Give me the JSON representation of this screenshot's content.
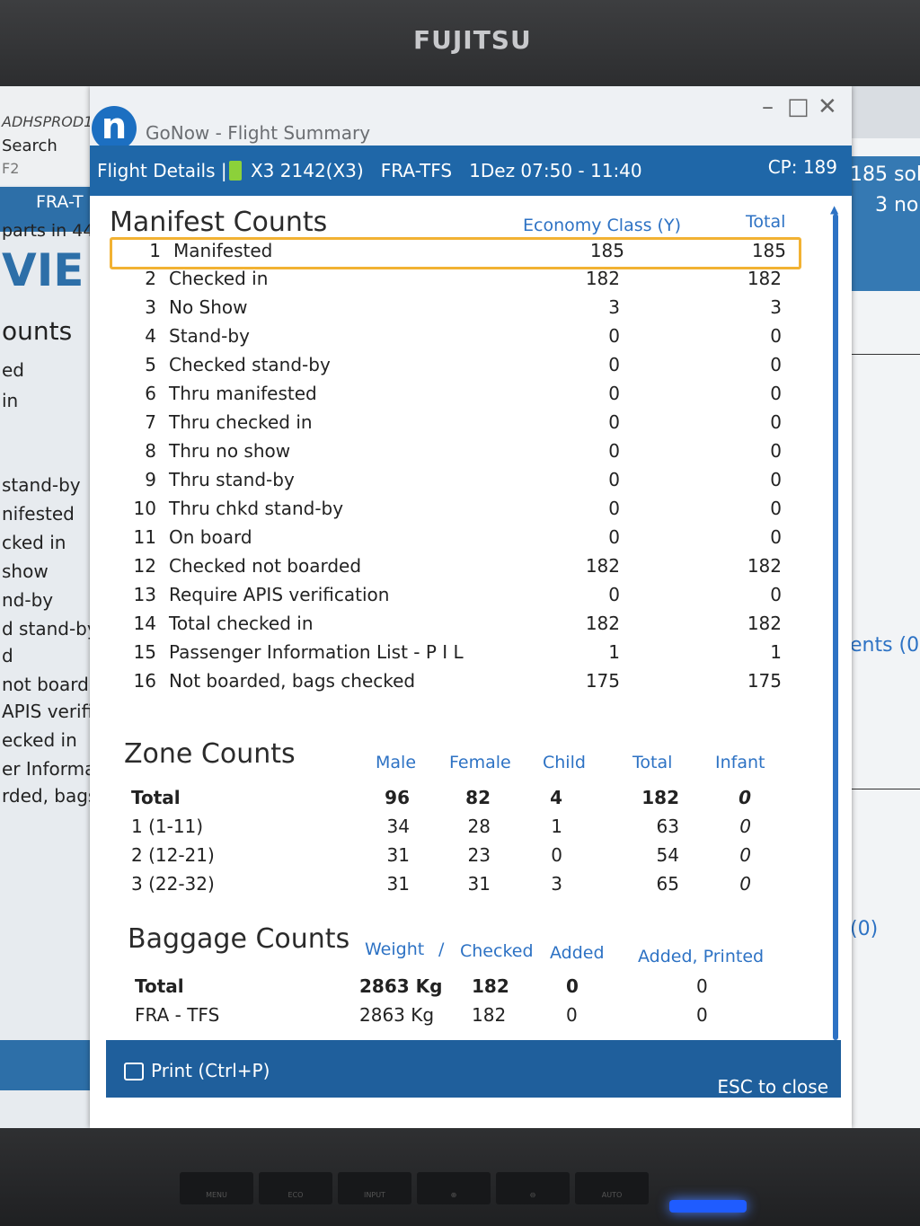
{
  "monitor": {
    "brand": "FUJITSU",
    "buttons": [
      "MENU",
      "ECO",
      "INPUT",
      "⊕",
      "⊖",
      "AUTO"
    ]
  },
  "background_app": {
    "left_texts": [
      "ADHSPROD1",
      "Search",
      "F2",
      "FRA-T",
      "parts in 44",
      "VIE",
      "ounts",
      "ed",
      "in",
      "stand-by",
      "nifested",
      "cked in",
      "show",
      "nd-by",
      "d stand-by",
      "d",
      "not boarde",
      "APIS verific",
      "ecked in",
      "er Informat",
      "rded, bags"
    ],
    "right_texts": [
      "185 sol",
      "3 no",
      "ents (0",
      "(0)"
    ]
  },
  "window": {
    "title": "GoNow - Flight Summary",
    "controls": [
      "–",
      "□",
      "✕"
    ],
    "logo": "n"
  },
  "header": {
    "label": "Flight Details |",
    "flight": "X3 2142(X3)",
    "route": "FRA-TFS",
    "date_time": "1Dez 07:50 - 11:40",
    "cp": "CP: 189"
  },
  "manifest": {
    "title": "Manifest Counts",
    "col_economy": "Economy Class (Y)",
    "col_total": "Total",
    "rows": [
      {
        "num": "1",
        "label": "Manifested",
        "economy": "185",
        "total": "185"
      },
      {
        "num": "2",
        "label": "Checked in",
        "economy": "182",
        "total": "182"
      },
      {
        "num": "3",
        "label": "No Show",
        "economy": "3",
        "total": "3"
      },
      {
        "num": "4",
        "label": "Stand-by",
        "economy": "0",
        "total": "0"
      },
      {
        "num": "5",
        "label": "Checked stand-by",
        "economy": "0",
        "total": "0"
      },
      {
        "num": "6",
        "label": "Thru manifested",
        "economy": "0",
        "total": "0"
      },
      {
        "num": "7",
        "label": "Thru checked in",
        "economy": "0",
        "total": "0"
      },
      {
        "num": "8",
        "label": "Thru no show",
        "economy": "0",
        "total": "0"
      },
      {
        "num": "9",
        "label": "Thru stand-by",
        "economy": "0",
        "total": "0"
      },
      {
        "num": "10",
        "label": "Thru chkd stand-by",
        "economy": "0",
        "total": "0"
      },
      {
        "num": "11",
        "label": "On board",
        "economy": "0",
        "total": "0"
      },
      {
        "num": "12",
        "label": "Checked not boarded",
        "economy": "182",
        "total": "182"
      },
      {
        "num": "13",
        "label": "Require APIS verification",
        "economy": "0",
        "total": "0"
      },
      {
        "num": "14",
        "label": "Total checked in",
        "economy": "182",
        "total": "182"
      },
      {
        "num": "15",
        "label": "Passenger Information List - P I L",
        "economy": "1",
        "total": "1"
      },
      {
        "num": "16",
        "label": "Not boarded, bags checked",
        "economy": "175",
        "total": "175"
      }
    ]
  },
  "zones": {
    "title": "Zone Counts",
    "headers": [
      "Male",
      "Female",
      "Child",
      "Total",
      "Infant"
    ],
    "rows": [
      {
        "label": "Total",
        "male": "96",
        "female": "82",
        "child": "4",
        "total": "182",
        "infant": "0"
      },
      {
        "label": "1 (1-11)",
        "male": "34",
        "female": "28",
        "child": "1",
        "total": "63",
        "infant": "0"
      },
      {
        "label": "2 (12-21)",
        "male": "31",
        "female": "23",
        "child": "0",
        "total": "54",
        "infant": "0"
      },
      {
        "label": "3 (22-32)",
        "male": "31",
        "female": "31",
        "child": "3",
        "total": "65",
        "infant": "0"
      }
    ]
  },
  "baggage": {
    "title": "Baggage Counts",
    "headers": [
      "Weight",
      "/",
      "Checked",
      "Added",
      "Added, Printed"
    ],
    "rows": [
      {
        "label": "Total",
        "weight": "2863 Kg",
        "checked": "182",
        "added": "0",
        "added_printed": "0"
      },
      {
        "label": "FRA - TFS",
        "weight": "2863 Kg",
        "checked": "182",
        "added": "0",
        "added_printed": "0"
      }
    ]
  },
  "footer": {
    "print": "Print (Ctrl+P)",
    "esc": "ESC to close"
  }
}
